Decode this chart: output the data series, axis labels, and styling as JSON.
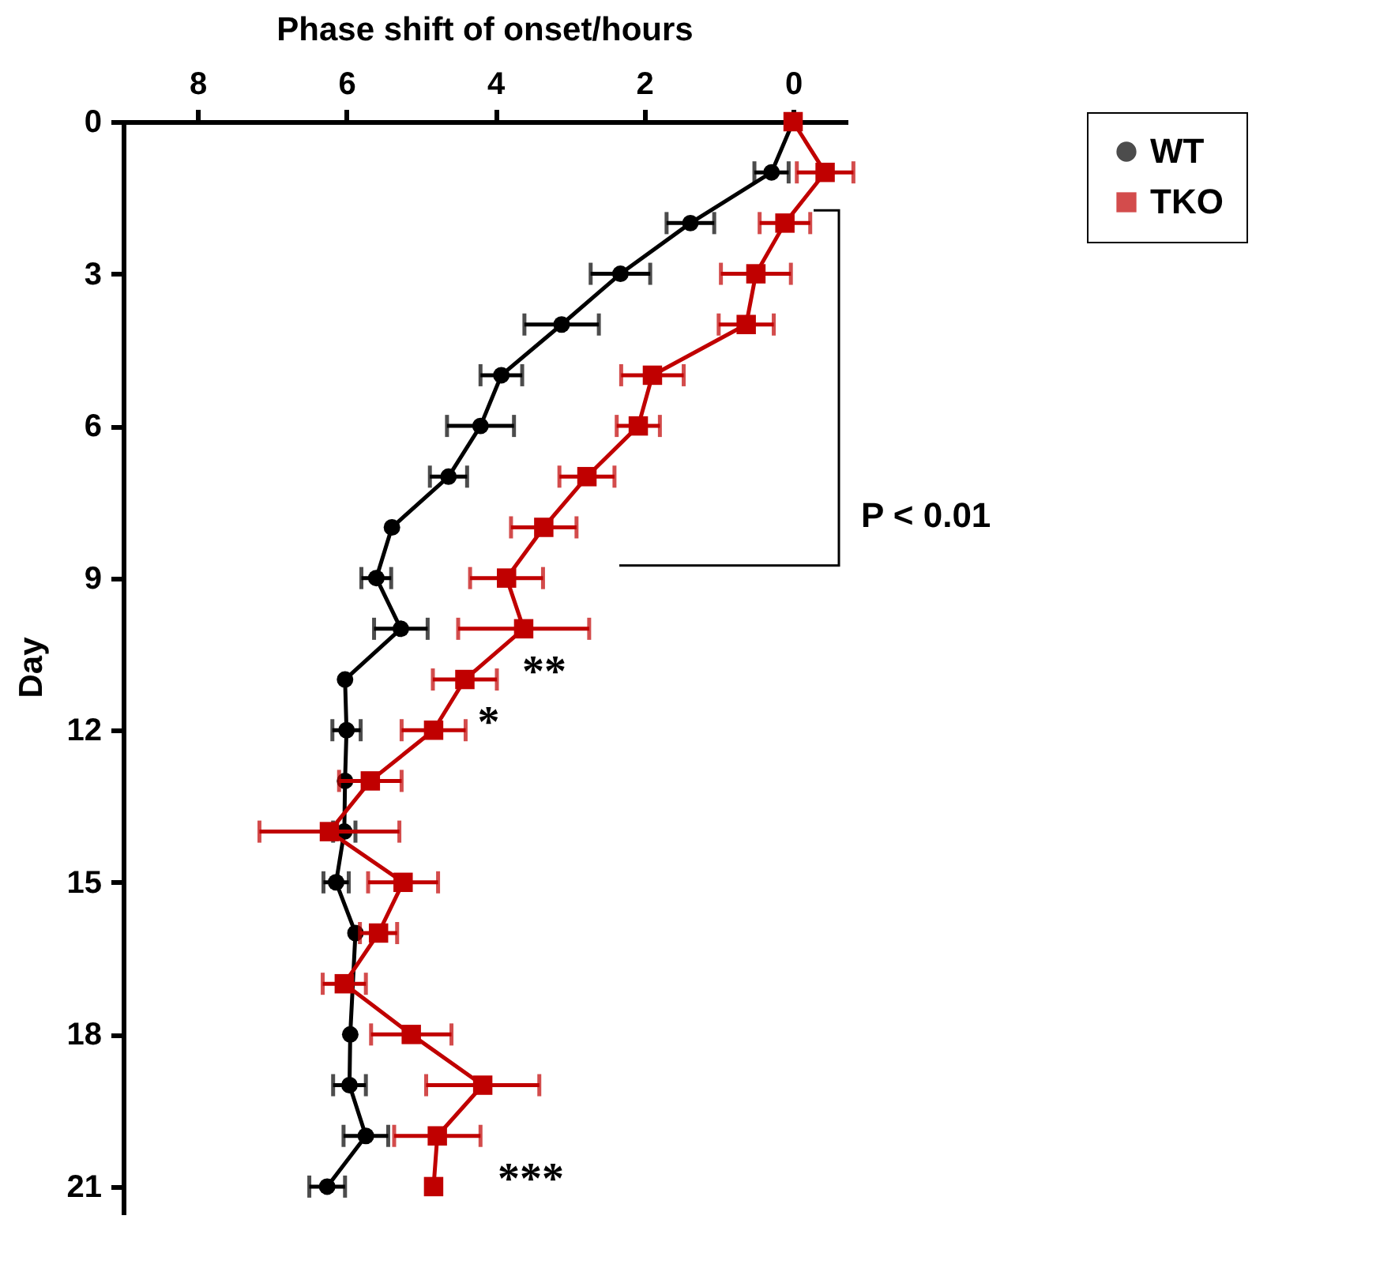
{
  "chart_data": {
    "type": "line",
    "orientation": "horizontal",
    "xlabel": "Phase shift of onset/hours",
    "ylabel": "Day",
    "x": [
      0,
      1,
      2,
      3,
      4,
      5,
      6,
      7,
      8,
      9,
      10,
      11,
      12,
      13,
      14,
      15,
      16,
      17,
      18,
      19,
      20,
      21
    ],
    "xlim": [
      9,
      -0.7
    ],
    "xticks": [
      8,
      6,
      4,
      2,
      0
    ],
    "ylim": [
      21.5,
      0
    ],
    "yticks": [
      0,
      3,
      6,
      9,
      12,
      15,
      18,
      21
    ],
    "series": [
      {
        "name": "WT",
        "color": "#000000",
        "marker": "circle",
        "values": [
          0,
          0.29,
          1.38,
          2.32,
          3.11,
          3.92,
          4.2,
          4.63,
          5.39,
          5.6,
          5.27,
          6.02,
          6.0,
          6.02,
          6.03,
          6.14,
          5.88,
          null,
          5.95,
          5.96,
          5.74,
          6.26
        ],
        "errors": [
          null,
          0.23,
          0.32,
          0.4,
          0.5,
          0.28,
          0.45,
          0.25,
          null,
          0.2,
          0.36,
          null,
          0.19,
          null,
          0.15,
          0.17,
          null,
          null,
          null,
          0.22,
          0.3,
          0.24
        ]
      },
      {
        "name": "TKO",
        "color": "#c00000",
        "marker": "square",
        "values": [
          0,
          -0.43,
          0.11,
          0.5,
          0.63,
          1.89,
          2.08,
          2.77,
          3.35,
          3.85,
          3.62,
          4.41,
          4.83,
          5.68,
          6.23,
          5.24,
          5.57,
          6.03,
          5.13,
          4.17,
          4.78,
          4.83
        ],
        "errors": [
          null,
          0.38,
          0.34,
          0.47,
          0.37,
          0.42,
          0.29,
          0.37,
          0.44,
          0.49,
          0.88,
          0.43,
          0.43,
          0.42,
          0.94,
          0.47,
          0.25,
          0.29,
          0.54,
          0.76,
          0.58,
          null
        ]
      }
    ],
    "annotations": [
      "**",
      "*",
      "***",
      "P < 0.01"
    ],
    "grid": false,
    "legend": "top right",
    "line_style": "solid"
  }
}
